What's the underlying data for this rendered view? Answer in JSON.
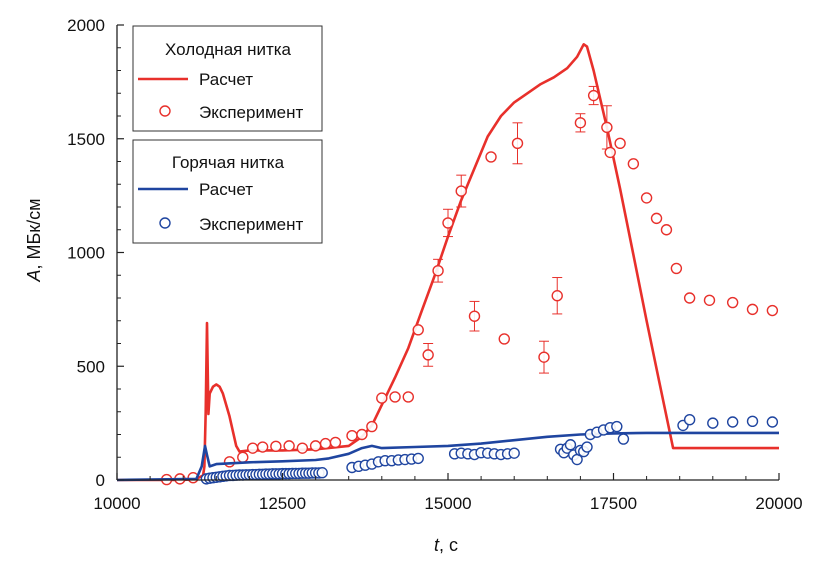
{
  "chart_data": {
    "type": "line",
    "xlabel_italic": "t",
    "xlabel_unit": ", с",
    "ylabel_italic": "A",
    "ylabel_unit": ", МБк/см",
    "xlim": [
      10000,
      20000
    ],
    "ylim": [
      0,
      2000
    ],
    "x_ticks": [
      10000,
      12500,
      15000,
      17500,
      20000
    ],
    "x_tick_labels": [
      "10000",
      "12500",
      "15000",
      "17500",
      "20000"
    ],
    "y_ticks": [
      0,
      500,
      1000,
      1500,
      2000
    ],
    "y_tick_labels": [
      "0",
      "500",
      "1000",
      "1500",
      "2000"
    ],
    "grid": false,
    "legend": {
      "placement": "top-left",
      "groups": [
        {
          "title": "Холодная нитка",
          "entries": [
            {
              "label": "Расчет",
              "kind": "line",
              "color": "#e8302b"
            },
            {
              "label": "Эксперимент",
              "kind": "marker",
              "color": "#e8302b"
            }
          ]
        },
        {
          "title": "Горячая нитка",
          "entries": [
            {
              "label": "Расчет",
              "kind": "line",
              "color": "#1f45a0"
            },
            {
              "label": "Эксперимент",
              "kind": "marker",
              "color": "#1f45a0"
            }
          ]
        }
      ]
    },
    "series": [
      {
        "group": "Холодная нитка",
        "kind": "line",
        "color": "#e8302b",
        "points": [
          [
            10000,
            0
          ],
          [
            11000,
            0
          ],
          [
            11200,
            5
          ],
          [
            11300,
            20
          ],
          [
            11320,
            60
          ],
          [
            11340,
            300
          ],
          [
            11360,
            690
          ],
          [
            11380,
            290
          ],
          [
            11400,
            380
          ],
          [
            11450,
            410
          ],
          [
            11500,
            420
          ],
          [
            11550,
            410
          ],
          [
            11600,
            380
          ],
          [
            11700,
            280
          ],
          [
            11800,
            150
          ],
          [
            11850,
            125
          ],
          [
            12000,
            130
          ],
          [
            12500,
            130
          ],
          [
            13000,
            135
          ],
          [
            13500,
            150
          ],
          [
            13700,
            190
          ],
          [
            13850,
            240
          ],
          [
            14000,
            330
          ],
          [
            14200,
            450
          ],
          [
            14400,
            580
          ],
          [
            14600,
            740
          ],
          [
            14800,
            900
          ],
          [
            15000,
            1070
          ],
          [
            15200,
            1230
          ],
          [
            15400,
            1370
          ],
          [
            15600,
            1510
          ],
          [
            15800,
            1600
          ],
          [
            16000,
            1660
          ],
          [
            16200,
            1700
          ],
          [
            16400,
            1740
          ],
          [
            16600,
            1770
          ],
          [
            16800,
            1810
          ],
          [
            16950,
            1860
          ],
          [
            17050,
            1915
          ],
          [
            17100,
            1905
          ],
          [
            17200,
            1800
          ],
          [
            17400,
            1550
          ],
          [
            17600,
            1280
          ],
          [
            17800,
            990
          ],
          [
            18000,
            700
          ],
          [
            18200,
            420
          ],
          [
            18400,
            140
          ],
          [
            20000,
            140
          ]
        ]
      },
      {
        "group": "Холодная нитка",
        "kind": "scatter",
        "color": "#e8302b",
        "points": [
          [
            10750,
            2
          ],
          [
            10950,
            5
          ],
          [
            11150,
            10
          ],
          [
            11700,
            80
          ],
          [
            11900,
            100
          ],
          [
            12050,
            140
          ],
          [
            12200,
            145
          ],
          [
            12400,
            148
          ],
          [
            12600,
            150
          ],
          [
            12800,
            140
          ],
          [
            13000,
            150
          ],
          [
            13150,
            160
          ],
          [
            13300,
            165
          ],
          [
            13550,
            195
          ],
          [
            13700,
            200
          ],
          [
            13850,
            235
          ],
          [
            14000,
            360
          ],
          [
            14200,
            365
          ],
          [
            14400,
            365
          ],
          [
            14550,
            660
          ],
          [
            14700,
            550
          ],
          [
            14850,
            920
          ],
          [
            15000,
            1130
          ],
          [
            15200,
            1270
          ],
          [
            15400,
            720
          ],
          [
            15650,
            1420
          ],
          [
            15850,
            620
          ],
          [
            16050,
            1480
          ],
          [
            16450,
            540
          ],
          [
            16650,
            810
          ],
          [
            17000,
            1570
          ],
          [
            17200,
            1690
          ],
          [
            17400,
            1550
          ],
          [
            17450,
            1440
          ],
          [
            17600,
            1480
          ],
          [
            17800,
            1390
          ],
          [
            18000,
            1240
          ],
          [
            18150,
            1150
          ],
          [
            18300,
            1100
          ],
          [
            18450,
            930
          ],
          [
            18650,
            800
          ],
          [
            18950,
            790
          ],
          [
            19300,
            780
          ],
          [
            19600,
            750
          ],
          [
            19900,
            745
          ]
        ],
        "errors": [
          {
            "x": 14700,
            "err": 50
          },
          {
            "x": 14850,
            "err": 50
          },
          {
            "x": 15000,
            "err": 60
          },
          {
            "x": 15200,
            "err": 70
          },
          {
            "x": 15400,
            "err": 65
          },
          {
            "x": 16050,
            "err": 90
          },
          {
            "x": 16450,
            "err": 70
          },
          {
            "x": 16650,
            "err": 80
          },
          {
            "x": 17000,
            "err": 40
          },
          {
            "x": 17200,
            "err": 40
          },
          {
            "x": 17400,
            "err": 95
          }
        ]
      },
      {
        "group": "Горячая нитка",
        "kind": "line",
        "color": "#1f45a0",
        "points": [
          [
            10000,
            0
          ],
          [
            11200,
            5
          ],
          [
            11280,
            60
          ],
          [
            11330,
            150
          ],
          [
            11360,
            110
          ],
          [
            11400,
            60
          ],
          [
            11500,
            70
          ],
          [
            12000,
            78
          ],
          [
            12500,
            82
          ],
          [
            13000,
            88
          ],
          [
            13200,
            95
          ],
          [
            13500,
            115
          ],
          [
            13700,
            140
          ],
          [
            13850,
            150
          ],
          [
            14000,
            140
          ],
          [
            14500,
            145
          ],
          [
            15000,
            150
          ],
          [
            15500,
            160
          ],
          [
            16000,
            175
          ],
          [
            16500,
            190
          ],
          [
            17000,
            200
          ],
          [
            17500,
            205
          ],
          [
            18000,
            207
          ],
          [
            18500,
            207
          ],
          [
            20000,
            207
          ]
        ]
      },
      {
        "group": "Горячая нитка",
        "kind": "scatter",
        "color": "#1f45a0",
        "points": [
          [
            11350,
            5
          ],
          [
            11400,
            8
          ],
          [
            11450,
            10
          ],
          [
            11500,
            12
          ],
          [
            11550,
            14
          ],
          [
            11600,
            16
          ],
          [
            11650,
            18
          ],
          [
            11700,
            20
          ],
          [
            11750,
            20
          ],
          [
            11800,
            21
          ],
          [
            11850,
            22
          ],
          [
            11900,
            22
          ],
          [
            11950,
            23
          ],
          [
            12000,
            23
          ],
          [
            12050,
            24
          ],
          [
            12100,
            24
          ],
          [
            12150,
            25
          ],
          [
            12200,
            25
          ],
          [
            12250,
            26
          ],
          [
            12300,
            26
          ],
          [
            12350,
            27
          ],
          [
            12400,
            27
          ],
          [
            12450,
            27
          ],
          [
            12500,
            28
          ],
          [
            12550,
            28
          ],
          [
            12600,
            28
          ],
          [
            12650,
            29
          ],
          [
            12700,
            29
          ],
          [
            12750,
            29
          ],
          [
            12800,
            30
          ],
          [
            12850,
            30
          ],
          [
            12900,
            30
          ],
          [
            12950,
            31
          ],
          [
            13000,
            31
          ],
          [
            13050,
            31
          ],
          [
            13100,
            32
          ],
          [
            13550,
            55
          ],
          [
            13650,
            60
          ],
          [
            13750,
            65
          ],
          [
            13850,
            70
          ],
          [
            13950,
            80
          ],
          [
            14050,
            85
          ],
          [
            14150,
            85
          ],
          [
            14250,
            88
          ],
          [
            14350,
            90
          ],
          [
            14450,
            92
          ],
          [
            14550,
            95
          ],
          [
            15100,
            115
          ],
          [
            15200,
            118
          ],
          [
            15300,
            115
          ],
          [
            15400,
            112
          ],
          [
            15500,
            120
          ],
          [
            15600,
            118
          ],
          [
            15700,
            115
          ],
          [
            15800,
            112
          ],
          [
            15900,
            115
          ],
          [
            16000,
            118
          ],
          [
            16700,
            135
          ],
          [
            16750,
            120
          ],
          [
            16800,
            140
          ],
          [
            16850,
            155
          ],
          [
            16900,
            110
          ],
          [
            16950,
            90
          ],
          [
            17000,
            130
          ],
          [
            17050,
            125
          ],
          [
            17100,
            145
          ],
          [
            17150,
            200
          ],
          [
            17250,
            210
          ],
          [
            17350,
            220
          ],
          [
            17450,
            230
          ],
          [
            17550,
            235
          ],
          [
            17650,
            180
          ],
          [
            18550,
            240
          ],
          [
            18650,
            265
          ],
          [
            19000,
            250
          ],
          [
            19300,
            255
          ],
          [
            19600,
            258
          ],
          [
            19900,
            255
          ]
        ]
      }
    ]
  }
}
